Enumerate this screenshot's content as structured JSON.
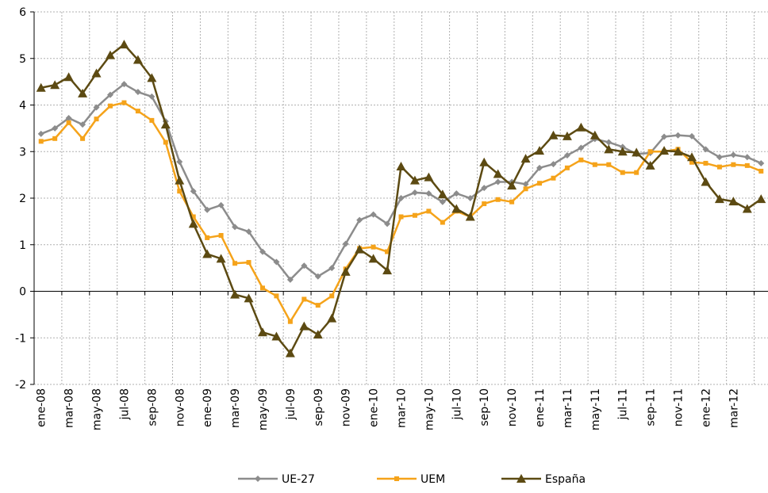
{
  "chart_data": {
    "type": "line",
    "categories": [
      "ene-08",
      null,
      "mar-08",
      null,
      "may-08",
      null,
      "jul-08",
      null,
      "sep-08",
      null,
      "nov-08",
      null,
      "ene-09",
      null,
      "mar-09",
      null,
      "may-09",
      null,
      "jul-09",
      null,
      "sep-09",
      null,
      "nov-09",
      null,
      "ene-10",
      null,
      "mar-10",
      null,
      "may-10",
      null,
      "jul-10",
      null,
      "sep-10",
      null,
      "nov-10",
      null,
      "ene-11",
      null,
      "mar-11",
      null,
      "may-11",
      null,
      "jul-11",
      null,
      "sep-11",
      null,
      "nov-11",
      null,
      "ene-12",
      null,
      "mar-12",
      null,
      null
    ],
    "series": [
      {
        "name": "UE-27",
        "color": "#8c8c8c",
        "marker": "diamond",
        "values": [
          3.38,
          3.5,
          3.72,
          3.58,
          3.95,
          4.22,
          4.45,
          4.28,
          4.18,
          3.65,
          2.78,
          2.15,
          1.75,
          1.85,
          1.38,
          1.28,
          0.85,
          0.63,
          0.25,
          0.55,
          0.32,
          0.5,
          1.02,
          1.53,
          1.65,
          1.45,
          2.0,
          2.12,
          2.1,
          1.92,
          2.1,
          2.0,
          2.22,
          2.35,
          2.35,
          2.3,
          2.65,
          2.73,
          2.92,
          3.08,
          3.27,
          3.2,
          3.1,
          2.95,
          2.97,
          3.32,
          3.35,
          3.33,
          3.05,
          2.88,
          2.93,
          2.88,
          2.75
        ]
      },
      {
        "name": "UEM",
        "color": "#f5a31a",
        "marker": "square",
        "values": [
          3.22,
          3.28,
          3.62,
          3.28,
          3.7,
          3.98,
          4.05,
          3.87,
          3.67,
          3.2,
          2.15,
          1.6,
          1.15,
          1.2,
          0.6,
          0.62,
          0.07,
          -0.1,
          -0.65,
          -0.17,
          -0.3,
          -0.1,
          0.48,
          0.92,
          0.95,
          0.85,
          1.6,
          1.63,
          1.72,
          1.48,
          1.72,
          1.6,
          1.88,
          1.97,
          1.92,
          2.2,
          2.32,
          2.43,
          2.65,
          2.82,
          2.72,
          2.72,
          2.55,
          2.55,
          3.0,
          3.0,
          3.05,
          2.77,
          2.75,
          2.67,
          2.72,
          2.7,
          2.58
        ]
      },
      {
        "name": "España",
        "color": "#5c4a12",
        "marker": "triangle",
        "values": [
          4.37,
          4.43,
          4.6,
          4.25,
          4.68,
          5.07,
          5.3,
          4.97,
          4.58,
          3.58,
          2.38,
          1.45,
          0.8,
          0.7,
          -0.07,
          -0.15,
          -0.88,
          -0.97,
          -1.33,
          -0.75,
          -0.93,
          -0.58,
          0.42,
          0.9,
          0.7,
          0.45,
          2.68,
          2.38,
          2.45,
          2.08,
          1.77,
          1.6,
          2.77,
          2.52,
          2.27,
          2.85,
          3.02,
          3.35,
          3.33,
          3.52,
          3.35,
          3.05,
          3.0,
          2.98,
          2.7,
          3.02,
          3.0,
          2.88,
          2.35,
          1.98,
          1.93,
          1.77,
          1.98
        ]
      }
    ],
    "ylim": [
      -2,
      6
    ],
    "yticks": [
      -2,
      -1,
      0,
      1,
      2,
      3,
      4,
      5,
      6
    ],
    "grid": true,
    "legend": "bottom"
  }
}
